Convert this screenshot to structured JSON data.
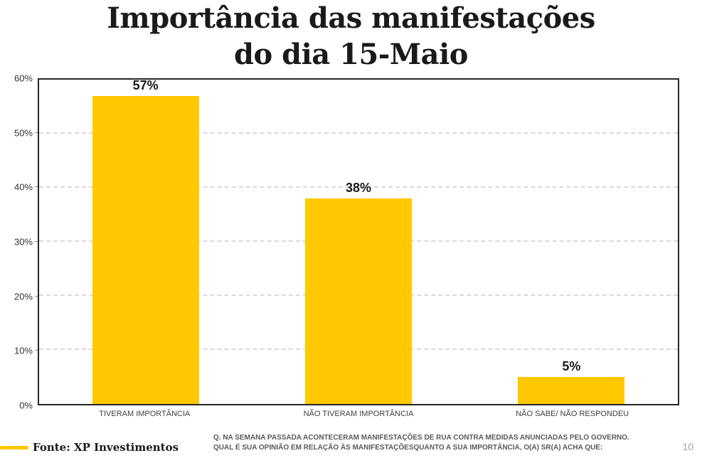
{
  "title": {
    "line1": "Importância das manifestações",
    "line2": "do dia 15-Maio"
  },
  "chart_data": {
    "type": "bar",
    "title": "Importância das manifestações do dia 15-Maio",
    "categories": [
      "TIVERAM IMPORTÂNCIA",
      "NÃO TIVERAM IMPORTÂNCIA",
      "NÃO SABE/ NÃO RESPONDEU"
    ],
    "values": [
      57,
      38,
      5
    ],
    "value_labels": [
      "57%",
      "38%",
      "5%"
    ],
    "xlabel": "",
    "ylabel": "",
    "ylim": [
      0,
      60
    ],
    "y_ticks": [
      "0%",
      "10%",
      "20%",
      "30%",
      "40%",
      "50%",
      "60%"
    ],
    "grid": "horizontal dashed",
    "legend": "none",
    "bar_color": "#FFC800"
  },
  "footer": {
    "source": "Fonte: XP Investimentos",
    "question_line1": "Q. NA SEMANA PASSADA ACONTECERAM MANIFESTAÇÕES DE RUA CONTRA MEDIDAS ANUNCIADAS PELO GOVERNO.",
    "question_line2": "QUAL É SUA OPINIÃO EM RELAÇÃO ÀS MANIFESTAÇÕESQUANTO A SUA IMPORTÂNCIA, O(A) SR(A) ACHA QUE:",
    "page_number": "10"
  },
  "colors": {
    "bar": "#FFC800",
    "accent_line": "#FFC800",
    "grid": "#D9D9D9",
    "plot_border": "#262626",
    "title_text": "#1A1A1A",
    "axis_text": "#404040",
    "question_text": "#595959",
    "page_number_text": "#A6A6A6"
  }
}
